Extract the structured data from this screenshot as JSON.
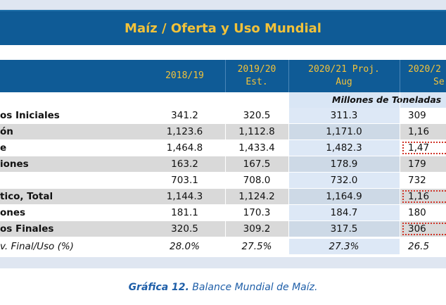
{
  "title": "Maíz / Oferta y Uso Mundial",
  "header": {
    "columns": [
      {
        "line1": "2018/19",
        "line2": ""
      },
      {
        "line1": "2019/20",
        "line2": "Est."
      },
      {
        "line1": "2020/21 Proj.",
        "line2": "Aug"
      },
      {
        "line1": "2020/2",
        "line2": "Se"
      }
    ]
  },
  "units": "Millones de Toneladas",
  "rows": [
    {
      "label": "os Iniciales",
      "v1": "341.2",
      "v2": "320.5",
      "v3": "311.3",
      "v4": "309"
    },
    {
      "label": "ón",
      "v1": "1,123.6",
      "v2": "1,112.8",
      "v3": "1,171.0",
      "v4": "1,16"
    },
    {
      "label": "e",
      "v1": "1,464.8",
      "v2": "1,433.4",
      "v3": "1,482.3",
      "v4": "1,47"
    },
    {
      "label": "iones",
      "v1": "163.2",
      "v2": "167.5",
      "v3": "178.9",
      "v4": "179"
    },
    {
      "label": "",
      "v1": "703.1",
      "v2": "708.0",
      "v3": "732.0",
      "v4": "732"
    },
    {
      "label": "tico, Total",
      "v1": "1,144.3",
      "v2": "1,124.2",
      "v3": "1,164.9",
      "v4": "1,16"
    },
    {
      "label": "ones",
      "v1": "181.1",
      "v2": "170.3",
      "v3": "184.7",
      "v4": "180"
    },
    {
      "label": "os Finales",
      "v1": "320.5",
      "v2": "309.2",
      "v3": "317.5",
      "v4": "306"
    },
    {
      "label": "v. Final/Uso (%)",
      "v1": "28.0%",
      "v2": "27.5%",
      "v3": "27.3%",
      "v4": "26.5"
    }
  ],
  "caption": {
    "bold": "Gráfica 12.",
    "text": " Balance Mundial de Maíz."
  },
  "colors": {
    "header_bg": "#0f5b96",
    "header_text": "#f2c23a",
    "highlight_col": "#d9e6f5",
    "row_gray": "#d9d9d9",
    "dotted_box": "#d0362a",
    "caption": "#1e5ea8"
  }
}
